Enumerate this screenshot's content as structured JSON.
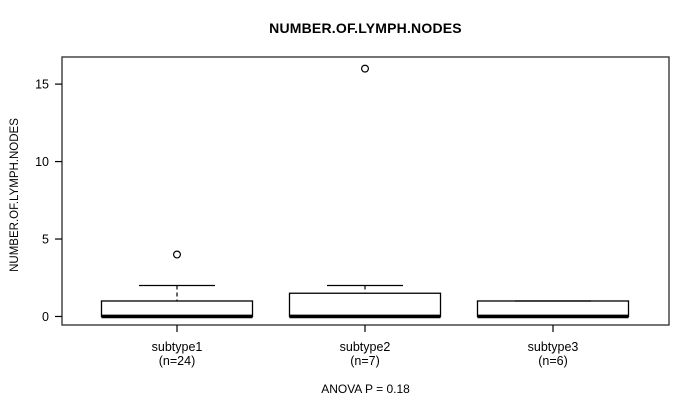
{
  "figure": {
    "background": "#ffffff",
    "line_color": "#000000",
    "border_color": "#3a3a3a"
  },
  "chart_data": {
    "type": "boxplot",
    "title": "NUMBER.OF.LYMPH.NODES",
    "ylabel": "NUMBER.OF.LYMPH.NODES",
    "annotation": "ANOVA P = 0.18",
    "yticks": [
      0,
      5,
      10,
      15
    ],
    "ylim": [
      -0.55,
      16.75
    ],
    "grid": false,
    "legend": "none",
    "box_fill": "#ffffff",
    "groups": [
      {
        "label": "subtype1",
        "sublabel": "(n=24)",
        "q1": 0,
        "median": 0,
        "q3": 1,
        "whisker_low": 0,
        "whisker_high": 2,
        "outliers": [
          4
        ]
      },
      {
        "label": "subtype2",
        "sublabel": "(n=7)",
        "q1": 0,
        "median": 0,
        "q3": 1.5,
        "whisker_low": 0,
        "whisker_high": 2,
        "outliers": [
          16
        ]
      },
      {
        "label": "subtype3",
        "sublabel": "(n=6)",
        "q1": 0,
        "median": 0,
        "q3": 1,
        "whisker_low": 0,
        "whisker_high": 1,
        "outliers": []
      }
    ]
  }
}
